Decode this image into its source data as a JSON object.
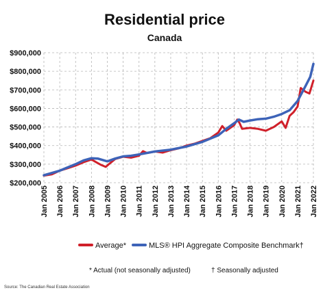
{
  "chart_data": {
    "type": "line",
    "title": "Residential price",
    "subtitle": "Canada",
    "ylim": [
      200000,
      900000
    ],
    "yticks": [
      "$200,000",
      "$300,000",
      "$400,000",
      "$500,000",
      "$600,000",
      "$700,000",
      "$800,000",
      "$900,000"
    ],
    "xlim": [
      2005,
      2022
    ],
    "xticks": [
      "Jan 2005",
      "Jan 2006",
      "Jan 2007",
      "Jan 2008",
      "Jan 2009",
      "Jan 2010",
      "Jan 2011",
      "Jan 2012",
      "Jan 2013",
      "Jan 2014",
      "Jan 2015",
      "Jan 2016",
      "Jan 2017",
      "Jan 2018",
      "Jan 2019",
      "Jan 2020",
      "Jan 2021",
      "Jan 2022"
    ],
    "grid": true,
    "legend_position": "bottom",
    "series": [
      {
        "name": "Average*",
        "color": "#d0202a",
        "x": [
          2005.0,
          2005.5,
          2006.0,
          2006.5,
          2007.0,
          2007.5,
          2008.0,
          2008.3,
          2008.6,
          2008.9,
          2009.1,
          2009.5,
          2010.0,
          2010.5,
          2011.0,
          2011.25,
          2011.5,
          2012.0,
          2012.5,
          2013.0,
          2013.5,
          2014.0,
          2014.5,
          2015.0,
          2015.5,
          2016.0,
          2016.25,
          2016.5,
          2017.0,
          2017.2,
          2017.35,
          2017.5,
          2018.0,
          2018.5,
          2019.0,
          2019.5,
          2020.0,
          2020.25,
          2020.5,
          2020.75,
          2021.0,
          2021.2,
          2021.5,
          2021.75,
          2022.0
        ],
        "values": [
          238000,
          245000,
          265000,
          278000,
          292000,
          310000,
          325000,
          310000,
          296000,
          285000,
          300000,
          328000,
          340000,
          335000,
          345000,
          370000,
          360000,
          368000,
          362000,
          375000,
          385000,
          400000,
          410000,
          425000,
          440000,
          470000,
          505000,
          480000,
          510000,
          540000,
          520000,
          490000,
          495000,
          490000,
          480000,
          500000,
          530000,
          495000,
          560000,
          580000,
          610000,
          710000,
          690000,
          680000,
          750000
        ]
      },
      {
        "name": "MLS® HPI Aggregate Composite Benchmark†",
        "color": "#3d63b8",
        "x": [
          2005.0,
          2006.0,
          2007.0,
          2007.5,
          2008.0,
          2008.4,
          2009.0,
          2009.5,
          2010.0,
          2010.5,
          2011.0,
          2012.0,
          2013.0,
          2014.0,
          2015.0,
          2016.0,
          2016.5,
          2017.0,
          2017.3,
          2017.6,
          2018.0,
          2018.5,
          2019.0,
          2019.5,
          2020.0,
          2020.5,
          2021.0,
          2021.5,
          2021.8,
          2022.0
        ],
        "values": [
          240000,
          265000,
          300000,
          320000,
          332000,
          330000,
          315000,
          330000,
          342000,
          345000,
          352000,
          368000,
          378000,
          395000,
          420000,
          455000,
          490000,
          520000,
          540000,
          528000,
          535000,
          542000,
          545000,
          555000,
          570000,
          590000,
          640000,
          720000,
          770000,
          840000
        ]
      }
    ],
    "footnote_actual": "* Actual (not seasonally adjusted)",
    "footnote_seasonal": "† Seasonally adjusted",
    "source": "Source: The Canadian Real Estate Association"
  }
}
